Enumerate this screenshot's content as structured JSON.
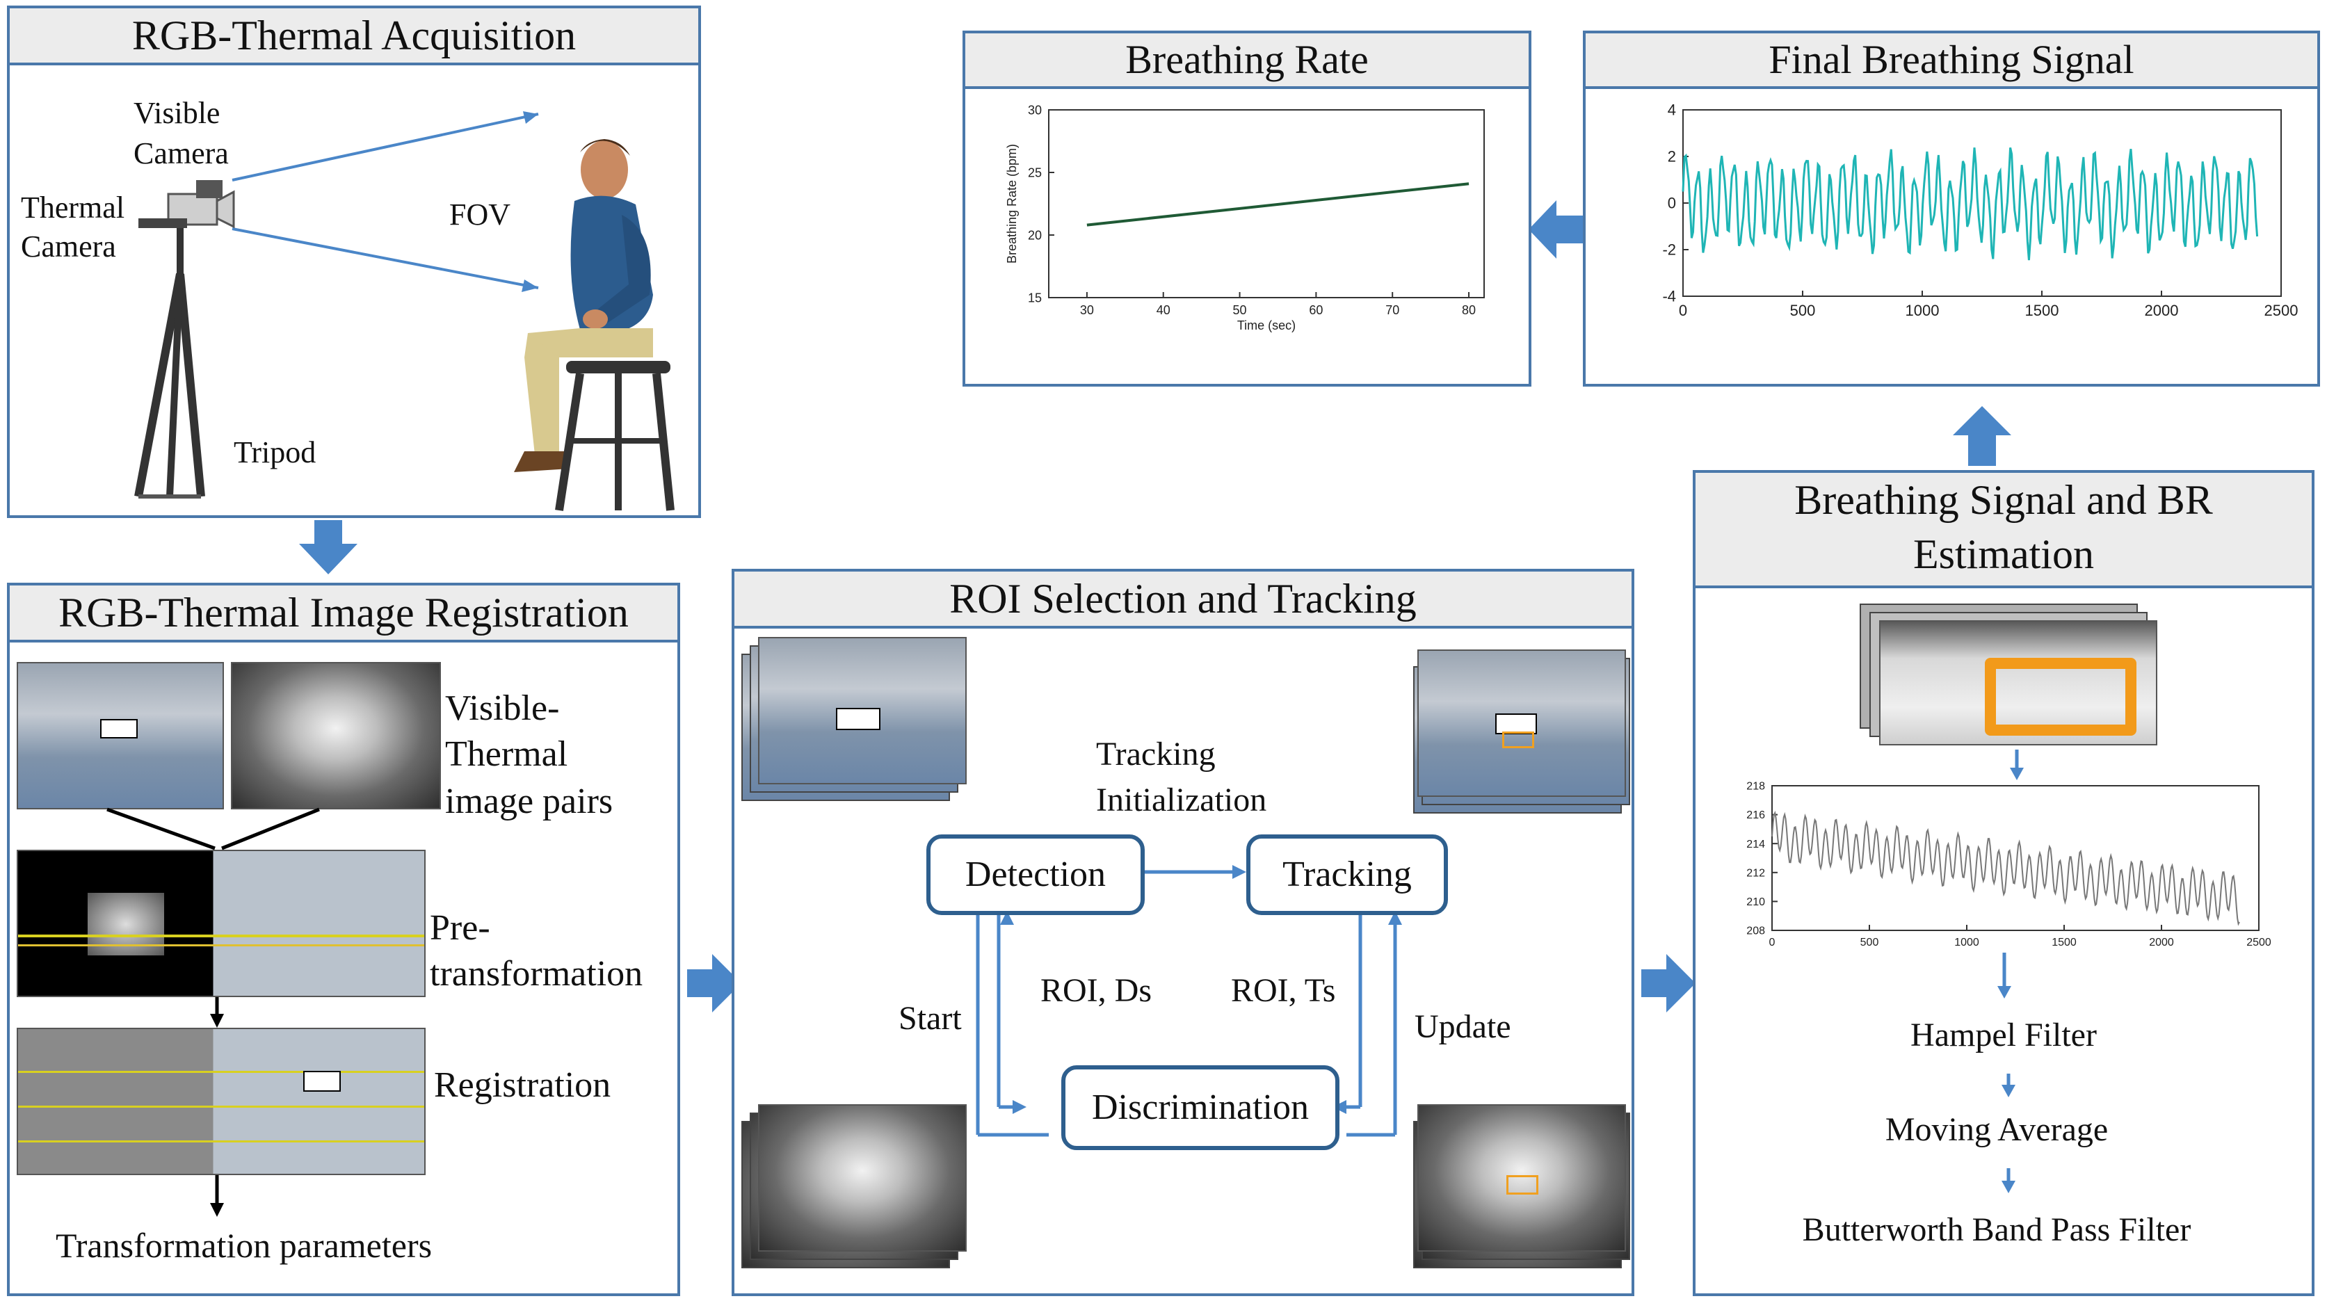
{
  "panels": {
    "acquisition": {
      "title": "RGB-Thermal Acquisition",
      "visible_camera": [
        "Visible",
        "Camera"
      ],
      "thermal_camera": [
        "Thermal",
        "Camera"
      ],
      "fov": "FOV",
      "tripod": "Tripod"
    },
    "registration": {
      "title": "RGB-Thermal Image Registration",
      "pairs": [
        "Visible-",
        "Thermal",
        "image pairs"
      ],
      "pre": [
        "Pre-",
        "transformation"
      ],
      "registration": "Registration",
      "transformation": "Transformation parameters"
    },
    "roi": {
      "title": "ROI Selection and Tracking",
      "tracking_init": [
        "Tracking",
        "Initialization"
      ],
      "detection": "Detection",
      "tracking": "Tracking",
      "discrimination": "Discrimination",
      "start": "Start",
      "roi_ds": "ROI, Ds",
      "roi_ts": "ROI, Ts",
      "update": "Update"
    },
    "estimation": {
      "title": [
        "Breathing Signal and BR",
        "Estimation"
      ],
      "hampel": "Hampel Filter",
      "moving_avg": "Moving Average",
      "butterworth": "Butterworth Band Pass Filter"
    },
    "breathing_rate": {
      "title": "Breathing Rate"
    },
    "final_signal": {
      "title": "Final Breathing Signal"
    }
  },
  "chart_data": [
    {
      "type": "line",
      "title": "Breathing Rate",
      "xlabel": "Time (sec)",
      "ylabel": "Breathing Rate (bpm)",
      "xlim": [
        25,
        82
      ],
      "ylim": [
        15,
        30
      ],
      "xticks": [
        30,
        40,
        50,
        60,
        70,
        80
      ],
      "yticks": [
        15,
        20,
        25,
        30
      ],
      "series": [
        {
          "x": [
            30,
            80
          ],
          "y": [
            20.8,
            24.1
          ],
          "color": "#1f5a35"
        }
      ]
    },
    {
      "type": "line",
      "title": "Final Breathing Signal",
      "xlim": [
        0,
        2500
      ],
      "ylim": [
        -4,
        4
      ],
      "xticks": [
        0,
        500,
        1000,
        1500,
        2000,
        2500
      ],
      "yticks": [
        -4,
        -2,
        0,
        2,
        4
      ],
      "series": [
        {
          "color": "#1fb5b5",
          "n": 2400,
          "amplitude": 1.6
        }
      ]
    },
    {
      "type": "line",
      "xlim": [
        0,
        2500
      ],
      "ylim": [
        208,
        218
      ],
      "xticks": [
        0,
        500,
        1000,
        1500,
        2000,
        2500
      ],
      "yticks": [
        208,
        210,
        212,
        214,
        216,
        218
      ],
      "series": [
        {
          "color": "#777777",
          "start": 214.5,
          "end": 210.2
        }
      ]
    }
  ],
  "colors": {
    "border": "#4a78aa",
    "arrow": "#4a86c8",
    "flow_box": "#2e5f8e"
  }
}
